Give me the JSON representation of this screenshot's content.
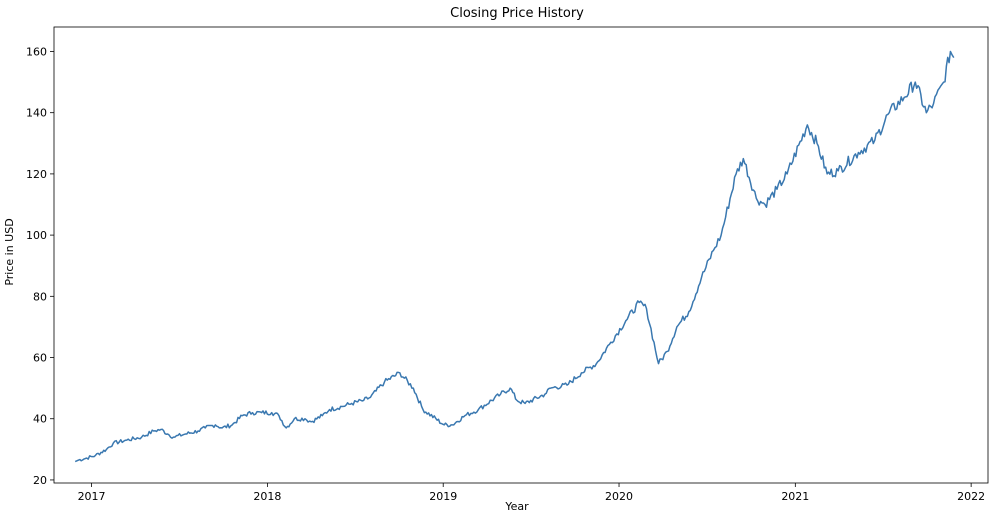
{
  "chart_data": {
    "type": "line",
    "title": "Closing Price History",
    "xlabel": "Year",
    "ylabel": "Price in USD",
    "xlim": [
      "2016-10-15",
      "2022-02-05"
    ],
    "ylim": [
      19,
      168
    ],
    "x_ticks": [
      "2017",
      "2018",
      "2019",
      "2020",
      "2021",
      "2022"
    ],
    "y_ticks": [
      20,
      40,
      60,
      80,
      100,
      120,
      140,
      160
    ],
    "grid": false,
    "line_color": "#3a78b0",
    "series": [
      {
        "x": [
          "2016-11-28",
          "2016-12-05",
          "2016-12-19",
          "2017-01-09",
          "2017-02-01",
          "2017-02-15",
          "2017-03-15",
          "2017-04-15",
          "2017-05-10",
          "2017-05-25",
          "2017-06-08",
          "2017-06-20",
          "2017-07-15",
          "2017-08-10",
          "2017-08-25",
          "2017-09-15",
          "2017-09-29",
          "2017-10-20",
          "2017-11-10",
          "2017-12-01",
          "2017-12-20",
          "2018-01-10",
          "2018-01-25",
          "2018-02-09",
          "2018-02-26",
          "2018-03-20",
          "2018-04-02",
          "2018-04-25",
          "2018-05-10",
          "2018-06-05",
          "2018-06-25",
          "2018-07-20",
          "2018-08-03",
          "2018-09-01",
          "2018-10-03",
          "2018-10-31",
          "2018-11-20",
          "2019-01-03",
          "2019-01-20",
          "2019-02-15",
          "2019-03-15",
          "2019-04-30",
          "2019-05-20",
          "2019-06-03",
          "2019-06-20",
          "2019-07-31",
          "2019-08-12",
          "2019-09-15",
          "2019-10-15",
          "2019-11-15",
          "2019-12-15",
          "2020-01-15",
          "2020-02-12",
          "2020-02-27",
          "2020-03-23",
          "2020-04-10",
          "2020-04-30",
          "2020-05-25",
          "2020-06-20",
          "2020-07-15",
          "2020-07-31",
          "2020-08-31",
          "2020-09-15",
          "2020-10-12",
          "2020-10-30",
          "2020-11-24",
          "2020-12-15",
          "2021-01-26",
          "2021-02-15",
          "2021-03-08",
          "2021-03-31",
          "2021-05-12",
          "2021-06-15",
          "2021-07-15",
          "2021-08-15",
          "2021-09-07",
          "2021-09-30",
          "2021-10-15",
          "2021-11-05",
          "2021-11-19",
          "2021-11-26"
        ],
        "y": [
          26,
          26.5,
          27,
          28,
          30,
          32,
          33,
          34,
          36,
          36.5,
          35,
          34,
          35,
          36,
          37,
          38,
          37,
          38,
          41,
          42,
          42,
          42,
          41,
          37,
          40,
          40,
          39,
          41,
          43,
          44,
          45,
          46,
          47,
          52,
          55,
          50,
          43,
          38,
          38,
          41,
          43,
          48,
          50,
          46,
          45,
          48,
          50,
          51,
          55,
          58,
          65,
          72,
          78,
          76,
          58,
          62,
          70,
          75,
          86,
          95,
          100,
          120,
          125,
          112,
          110,
          115,
          120,
          136,
          130,
          120,
          121,
          127,
          131,
          140,
          145,
          150,
          140,
          143,
          150,
          160,
          158
        ]
      }
    ]
  }
}
